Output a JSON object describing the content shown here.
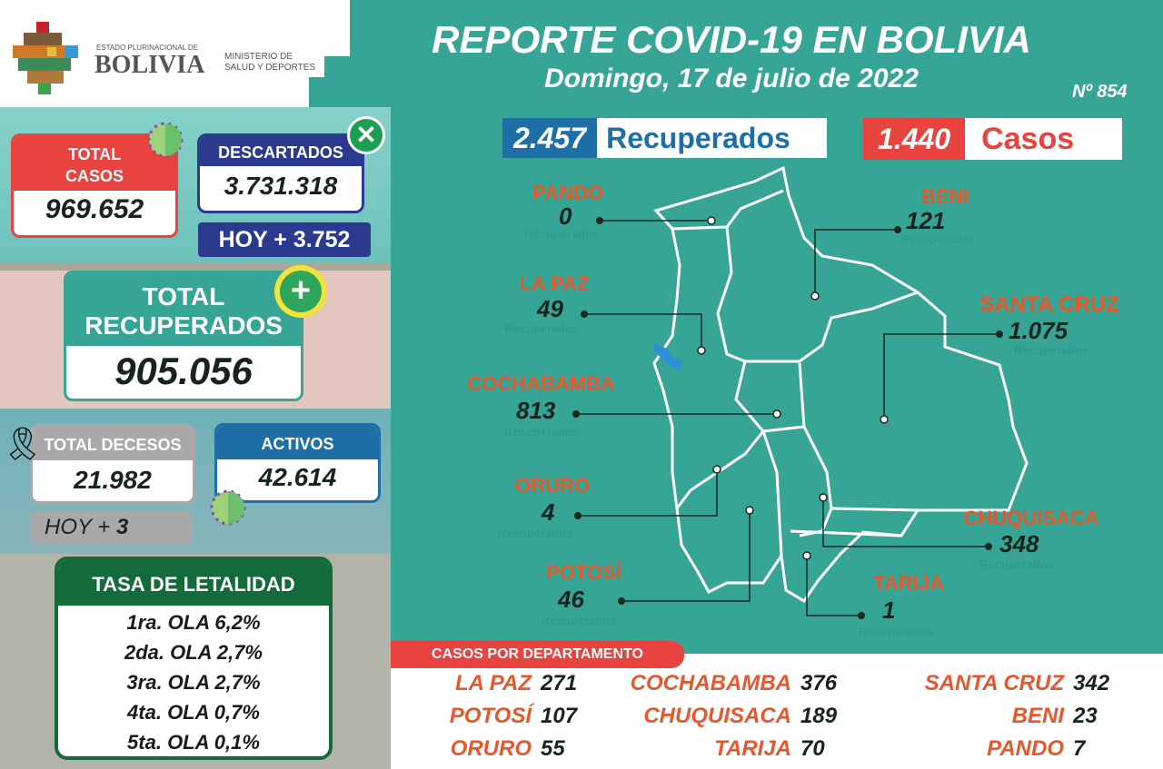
{
  "logo": {
    "small": "ESTADO PLURINACIONAL DE",
    "big": "BOLIVIA",
    "ministry_line1": "MINISTERIO DE",
    "ministry_line2": "SALUD Y DEPORTES"
  },
  "header": {
    "title": "REPORTE COVID-19 EN BOLIVIA",
    "date": "Domingo, 17 de julio de 2022",
    "number": "Nº 854"
  },
  "summary": {
    "recuperados_value": "2.457",
    "recuperados_label": "Recuperados",
    "casos_value": "1.440",
    "casos_label": "Casos"
  },
  "left": {
    "total_casos_label1": "TOTAL",
    "total_casos_label2": "CASOS",
    "total_casos": "969.652",
    "descartados_label": "DESCARTADOS",
    "descartados": "3.731.318",
    "descartados_hoy": "HOY + 3.752",
    "recuperados_label1": "TOTAL",
    "recuperados_label2": "RECUPERADOS",
    "recuperados": "905.056",
    "decesos_label": "TOTAL DECESOS",
    "decesos": "21.982",
    "decesos_hoy_label": "HOY +",
    "decesos_hoy": "3",
    "activos_label": "ACTIVOS",
    "activos": "42.614",
    "letalidad_title": "TASA DE LETALIDAD",
    "letalidad": [
      "1ra. OLA 6,2%",
      "2da. OLA 2,7%",
      "3ra. OLA 2,7%",
      "4ta. OLA 0,7%",
      "5ta. OLA 0,1%"
    ]
  },
  "map": {
    "sublabel": "Recuperados",
    "departments": [
      {
        "name": "PANDO",
        "value": "0"
      },
      {
        "name": "BENI",
        "value": "121"
      },
      {
        "name": "LA PAZ",
        "value": "49"
      },
      {
        "name": "SANTA CRUZ",
        "value": "1.075"
      },
      {
        "name": "COCHABAMBA",
        "value": "813"
      },
      {
        "name": "ORURO",
        "value": "4"
      },
      {
        "name": "CHUQUISACA",
        "value": "348"
      },
      {
        "name": "POTOSÍ",
        "value": "46"
      },
      {
        "name": "TARIJA",
        "value": "1"
      }
    ]
  },
  "casos_por_departamento": {
    "title": "CASOS POR DEPARTAMENTO",
    "rows": [
      [
        {
          "name": "LA PAZ",
          "value": "271"
        },
        {
          "name": "COCHABAMBA",
          "value": "376"
        },
        {
          "name": "SANTA CRUZ",
          "value": "342"
        }
      ],
      [
        {
          "name": "POTOSÍ",
          "value": "107"
        },
        {
          "name": "CHUQUISACA",
          "value": "189"
        },
        {
          "name": "BENI",
          "value": "23"
        }
      ],
      [
        {
          "name": "ORURO",
          "value": "55"
        },
        {
          "name": "TARIJA",
          "value": "70"
        },
        {
          "name": "PANDO",
          "value": "7"
        }
      ]
    ]
  },
  "colors": {
    "teal": "#37a596",
    "red": "#e9433f",
    "navy": "#2b3a8f",
    "blue": "#1e6fa8",
    "green": "#136b3a",
    "orange": "#e8572a"
  }
}
